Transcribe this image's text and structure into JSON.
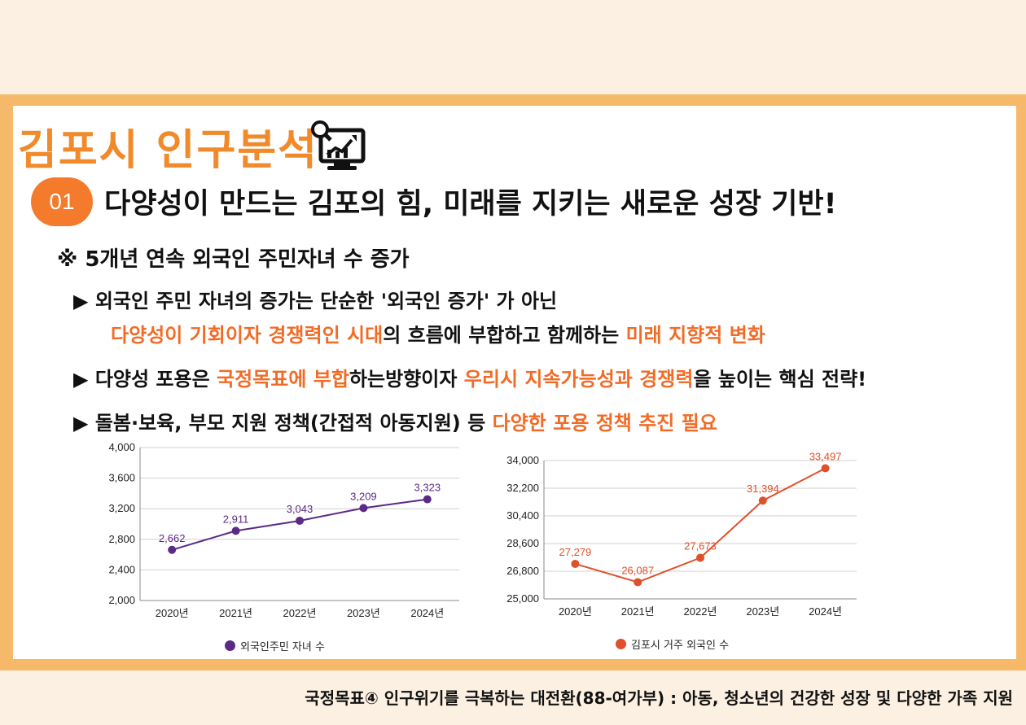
{
  "header": {
    "brand_title": "김포시 인구분석",
    "number": "01",
    "headline": "다양성이 만드는 김포의 힘, 미래를 지키는 새로운 성장 기반!",
    "subhead": "※ 5개년 연속 외국인 주민자녀 수 증가"
  },
  "bullets": [
    {
      "arrow": "▶",
      "text": " 외국인 주민 자녀의 증가는 단순한 '외국인 증가' 가 아닌"
    },
    {
      "hl1": "다양성이 기회이자 경쟁력인 시대",
      "t1": "의 흐름에 부합하고 함께하는 ",
      "hl2": "미래 지향적 변화"
    },
    {
      "arrow": "▶",
      "t0": " 다양성 포용은 ",
      "hl1": "국정목표에 부합",
      "t1": "하는방향이자 ",
      "hl2": "우리시 지속가능성과 경쟁력",
      "t2": "을 높이는 핵심 전략!"
    },
    {
      "arrow": "▶",
      "t0": " 돌봄·보육, 부모 지원 정책(간접적 아동지원) 등 ",
      "hl1": "다양한 포용 정책 추진 필요"
    }
  ],
  "colors": {
    "accent": "#f26b26",
    "purple": "#5b2a86",
    "orange": "#e0502a"
  },
  "chart_data": [
    {
      "type": "line",
      "x": [
        "2020년",
        "2021년",
        "2022년",
        "2023년",
        "2024년"
      ],
      "series": [
        {
          "name": "외국인주민 자녀 수",
          "values": [
            2662,
            2911,
            3043,
            3209,
            3323
          ]
        }
      ],
      "value_labels": [
        "2,662",
        "2,911",
        "3,043",
        "3,209",
        "3,323"
      ],
      "yticks": [
        "2,000",
        "2,400",
        "2,800",
        "3,200",
        "3,600",
        "4,000"
      ],
      "ylim": [
        2000,
        4000
      ],
      "grid": true,
      "legend": "bottom"
    },
    {
      "type": "line",
      "x": [
        "2020년",
        "2021년",
        "2022년",
        "2023년",
        "2024년"
      ],
      "series": [
        {
          "name": "김포시 거주 외국인 수",
          "values": [
            27279,
            26087,
            27673,
            31394,
            33497
          ]
        }
      ],
      "value_labels": [
        "27,279",
        "26,087",
        "27,673",
        "31,394",
        "33,497"
      ],
      "yticks": [
        "25,000",
        "26,800",
        "28,600",
        "30,400",
        "32,200",
        "34,000"
      ],
      "ylim": [
        25000,
        34000
      ],
      "grid": true,
      "legend": "bottom"
    }
  ],
  "footer": "국정목표④ 인구위기를 극복하는 대전환(88-여가부) : 아동, 청소년의 건강한 성장 및 다양한 가족 지원"
}
